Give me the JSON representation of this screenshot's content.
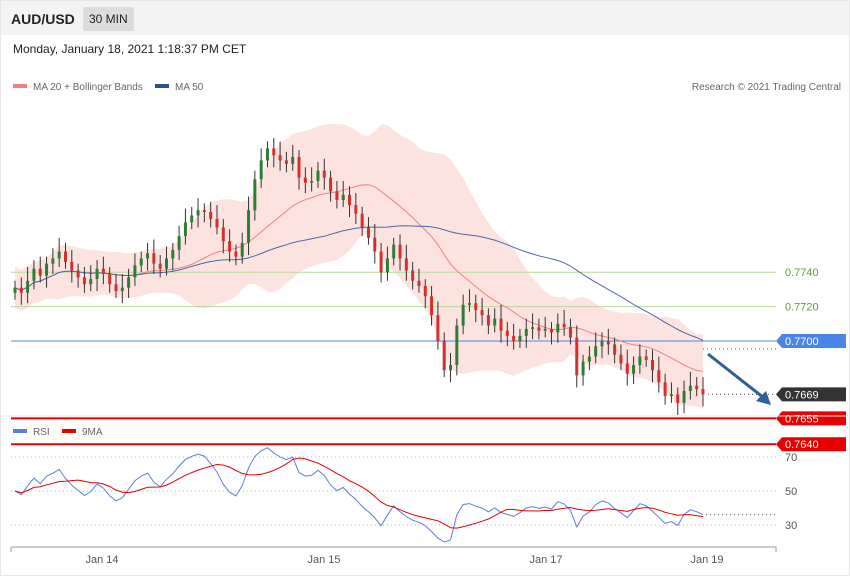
{
  "header": {
    "symbol": "AUD/USD",
    "timeframe": "30 MIN"
  },
  "datetime": "Monday, January 18, 2021 1:18:37 PM CET",
  "legend": {
    "ma20_label": "MA 20 + Bollinger Bands",
    "ma50_label": "MA 50",
    "copyright": "Research © 2021 Trading Central",
    "rsi_label": "RSI",
    "ma9_label": "9MA"
  },
  "colors": {
    "bull": "#2e7d32",
    "bear": "#d32f2f",
    "bands": "#fde3e0",
    "ma20": "#f08080",
    "ma50": "#4a67a8",
    "support": "#e60000",
    "level_green": "#b7d99a",
    "level_blue": "#4a86e8",
    "last": "#333333",
    "arrow": "#2f5f98"
  },
  "chart_data": [
    {
      "type": "candlestick",
      "x_ticks": [
        "Jan 14",
        "Jan 15",
        "Jan 17",
        "Jan 19"
      ],
      "ylim": [
        0.7625,
        0.7875
      ],
      "series": [
        {
          "name": "MA 20 + Bollinger Bands"
        },
        {
          "name": "MA 50"
        }
      ],
      "closes": [
        0.7731,
        0.7728,
        0.7735,
        0.7742,
        0.7738,
        0.7745,
        0.7748,
        0.7752,
        0.7746,
        0.7741,
        0.7737,
        0.7733,
        0.7736,
        0.7742,
        0.7739,
        0.7733,
        0.7729,
        0.7731,
        0.7737,
        0.7744,
        0.7748,
        0.7751,
        0.7745,
        0.7742,
        0.7748,
        0.7753,
        0.7761,
        0.7769,
        0.7773,
        0.7776,
        0.7775,
        0.7771,
        0.7766,
        0.7758,
        0.7752,
        0.7749,
        0.7757,
        0.7776,
        0.7794,
        0.7805,
        0.7812,
        0.7808,
        0.7805,
        0.7803,
        0.7807,
        0.7795,
        0.7792,
        0.7793,
        0.7799,
        0.7795,
        0.7787,
        0.7782,
        0.7785,
        0.7779,
        0.7774,
        0.7766,
        0.776,
        0.7752,
        0.774,
        0.7748,
        0.7756,
        0.7748,
        0.7741,
        0.7735,
        0.7732,
        0.7726,
        0.7715,
        0.77,
        0.7683,
        0.7686,
        0.7709,
        0.7721,
        0.7722,
        0.7718,
        0.7715,
        0.7709,
        0.7713,
        0.7706,
        0.7703,
        0.77,
        0.7703,
        0.7707,
        0.7708,
        0.7706,
        0.7707,
        0.7705,
        0.771,
        0.7708,
        0.7702,
        0.768,
        0.7688,
        0.7691,
        0.7697,
        0.77,
        0.7698,
        0.7692,
        0.7687,
        0.7681,
        0.7686,
        0.7691,
        0.7689,
        0.7683,
        0.7676,
        0.7668,
        0.7669,
        0.7664,
        0.7671,
        0.7674,
        0.7672,
        0.7669
      ],
      "levels": [
        {
          "value": 0.774,
          "label": "0.7740",
          "kind": "resistance"
        },
        {
          "value": 0.772,
          "label": "0.7720",
          "kind": "resistance"
        },
        {
          "value": 0.77,
          "label": "0.7700",
          "kind": "pivot"
        },
        {
          "value": 0.7669,
          "label": "0.7669",
          "kind": "last"
        },
        {
          "value": 0.7655,
          "label": "0.7655",
          "kind": "support"
        },
        {
          "value": 0.764,
          "label": "0.7640",
          "kind": "support"
        }
      ]
    },
    {
      "type": "line",
      "ylim": [
        20,
        80
      ],
      "y_ticks": [
        "70",
        "50",
        "30"
      ],
      "series": [
        {
          "name": "RSI"
        },
        {
          "name": "9MA"
        }
      ]
    }
  ]
}
